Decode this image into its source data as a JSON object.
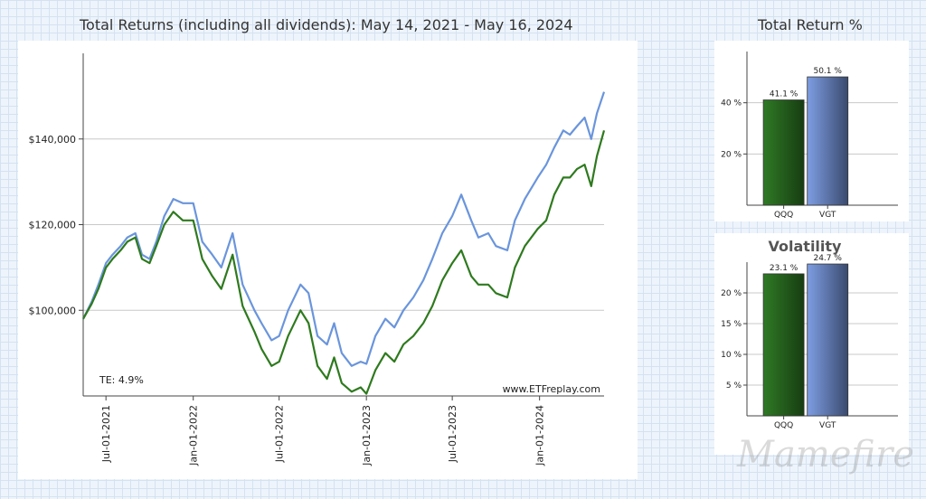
{
  "chart_data": [
    {
      "type": "line",
      "title": "Total Returns (including all dividends): May 14, 2021 - May 16, 2024",
      "xlabel": "",
      "ylabel": "",
      "x_ticks": [
        "Jul-01-2021",
        "Jan-01-2022",
        "Jul-01-2022",
        "Jan-01-2023",
        "Jul-01-2023",
        "Jan-01-2024"
      ],
      "y_ticks": [
        "$100,000",
        "$120,000",
        "$140,000"
      ],
      "ylim": [
        80000,
        160000
      ],
      "xlim": [
        "2021-05-14",
        "2024-05-16"
      ],
      "grid": true,
      "annotation_te": "TE:  4.9%",
      "source": "www.ETFreplay.com",
      "series": [
        {
          "color": "#6a95dc",
          "x": [
            "2021-05-14",
            "2021-06-01",
            "2021-06-15",
            "2021-07-01",
            "2021-07-15",
            "2021-08-01",
            "2021-08-15",
            "2021-09-01",
            "2021-09-15",
            "2021-10-01",
            "2021-10-15",
            "2021-11-01",
            "2021-11-20",
            "2021-12-10",
            "2022-01-01",
            "2022-01-20",
            "2022-02-10",
            "2022-03-01",
            "2022-03-25",
            "2022-04-15",
            "2022-05-10",
            "2022-05-25",
            "2022-06-15",
            "2022-07-01",
            "2022-07-20",
            "2022-08-15",
            "2022-09-01",
            "2022-09-20",
            "2022-10-10",
            "2022-10-25",
            "2022-11-10",
            "2022-12-01",
            "2022-12-20",
            "2023-01-01",
            "2023-01-20",
            "2023-02-10",
            "2023-03-01",
            "2023-03-20",
            "2023-04-10",
            "2023-05-01",
            "2023-05-20",
            "2023-06-10",
            "2023-07-01",
            "2023-07-20",
            "2023-08-10",
            "2023-08-25",
            "2023-09-15",
            "2023-10-01",
            "2023-10-25",
            "2023-11-10",
            "2023-12-01",
            "2023-12-28",
            "2024-01-15",
            "2024-02-01",
            "2024-02-20",
            "2024-03-05",
            "2024-03-20",
            "2024-04-05",
            "2024-04-19",
            "2024-05-01",
            "2024-05-16"
          ],
          "y": [
            98000,
            102000,
            106000,
            111000,
            113000,
            115000,
            117000,
            118000,
            113000,
            112000,
            116000,
            122000,
            126000,
            125000,
            125000,
            116000,
            113000,
            110000,
            118000,
            106000,
            100000,
            97000,
            93000,
            94000,
            100000,
            106000,
            104000,
            94000,
            92000,
            97000,
            90000,
            87000,
            88000,
            87500,
            94000,
            98000,
            96000,
            100000,
            103000,
            107000,
            112000,
            118000,
            122000,
            127000,
            121000,
            117000,
            118000,
            115000,
            114000,
            121000,
            126000,
            131000,
            134000,
            138000,
            142000,
            141000,
            143000,
            145000,
            140000,
            146000,
            151000
          ]
        },
        {
          "color": "#2e7a1e",
          "x": [
            "2021-05-14",
            "2021-06-01",
            "2021-06-15",
            "2021-07-01",
            "2021-07-15",
            "2021-08-01",
            "2021-08-15",
            "2021-09-01",
            "2021-09-15",
            "2021-10-01",
            "2021-10-15",
            "2021-11-01",
            "2021-11-20",
            "2021-12-10",
            "2022-01-01",
            "2022-01-20",
            "2022-02-10",
            "2022-03-01",
            "2022-03-25",
            "2022-04-15",
            "2022-05-10",
            "2022-05-25",
            "2022-06-15",
            "2022-07-01",
            "2022-07-20",
            "2022-08-15",
            "2022-09-01",
            "2022-09-20",
            "2022-10-10",
            "2022-10-25",
            "2022-11-10",
            "2022-12-01",
            "2022-12-20",
            "2023-01-01",
            "2023-01-20",
            "2023-02-10",
            "2023-03-01",
            "2023-03-20",
            "2023-04-10",
            "2023-05-01",
            "2023-05-20",
            "2023-06-10",
            "2023-07-01",
            "2023-07-20",
            "2023-08-10",
            "2023-08-25",
            "2023-09-15",
            "2023-10-01",
            "2023-10-25",
            "2023-11-10",
            "2023-12-01",
            "2023-12-28",
            "2024-01-15",
            "2024-02-01",
            "2024-02-20",
            "2024-03-05",
            "2024-03-20",
            "2024-04-05",
            "2024-04-19",
            "2024-05-01",
            "2024-05-16"
          ],
          "y": [
            98000,
            101500,
            105000,
            110000,
            112000,
            114000,
            116000,
            117000,
            112000,
            111000,
            115000,
            120000,
            123000,
            121000,
            121000,
            112000,
            108000,
            105000,
            113000,
            101000,
            95000,
            91000,
            87000,
            88000,
            94000,
            100000,
            97000,
            87000,
            84000,
            89000,
            83000,
            81000,
            82000,
            80500,
            86000,
            90000,
            88000,
            92000,
            94000,
            97000,
            101000,
            107000,
            111000,
            114000,
            108000,
            106000,
            106000,
            104000,
            103000,
            110000,
            115000,
            119000,
            121000,
            127000,
            131000,
            131000,
            133000,
            134000,
            129000,
            136000,
            142000
          ]
        }
      ]
    },
    {
      "type": "bar",
      "title": "Total Return %",
      "categories": [
        "QQQ",
        "VGT"
      ],
      "values": [
        41.1,
        50.1
      ],
      "value_labels": [
        "41.1 %",
        "50.1 %"
      ],
      "y_ticks": [
        "20 %",
        "40 %"
      ],
      "ylim": [
        0,
        60
      ],
      "grid": true,
      "colors": [
        "#2f7a25",
        "#7e9ee3"
      ]
    },
    {
      "type": "bar",
      "title": "Volatility",
      "categories": [
        "QQQ",
        "VGT"
      ],
      "values": [
        23.1,
        24.7
      ],
      "value_labels": [
        "23.1 %",
        "24.7 %"
      ],
      "y_ticks": [
        "5 %",
        "10 %",
        "15 %",
        "20 %"
      ],
      "ylim": [
        0,
        25
      ],
      "grid": true,
      "colors": [
        "#2f7a25",
        "#7e9ee3"
      ]
    }
  ],
  "header": {
    "main_title": "Total Returns (including all dividends): May 14, 2021 - May 16, 2024",
    "side_title": "Total Return %"
  },
  "watermark": "Mamefire"
}
